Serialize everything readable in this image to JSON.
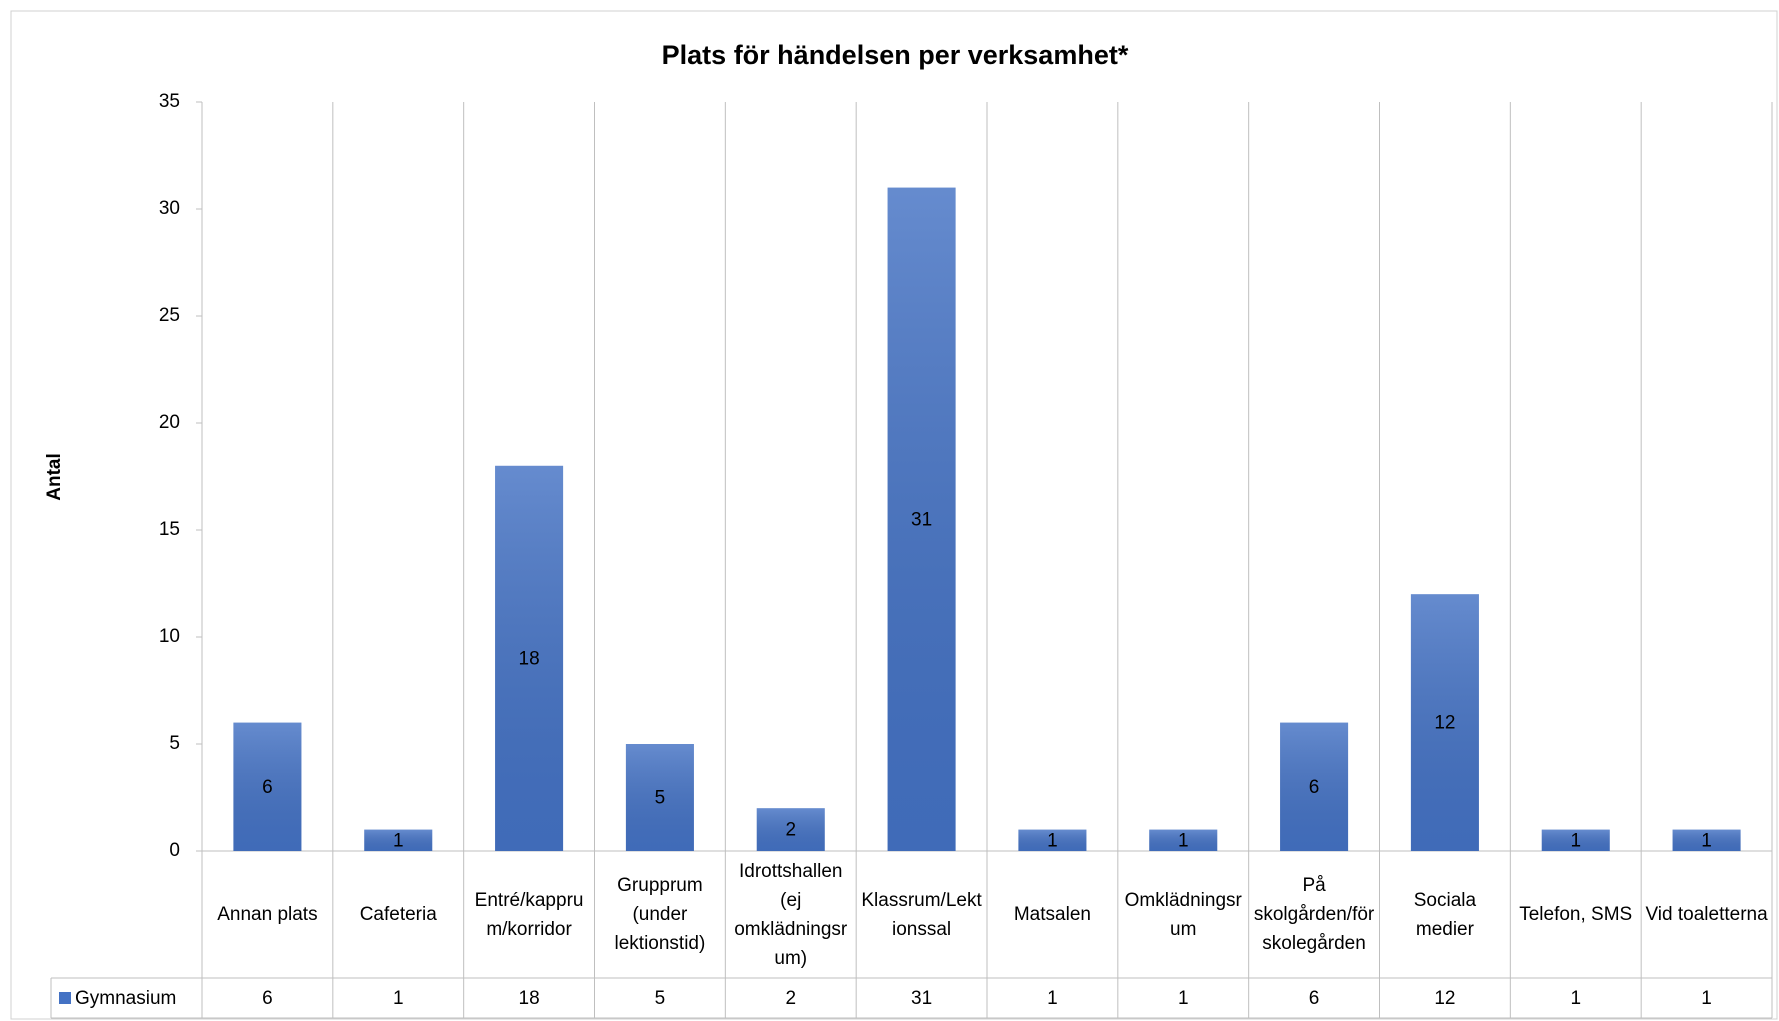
{
  "chart_data": {
    "type": "bar",
    "title": "Plats för händelsen per verksamhet*",
    "y_label": "Antal",
    "categories": [
      "Annan plats",
      "Cafeteria",
      "Entré/kapprum/korridor",
      "Grupprum (under lektionstid)",
      "Idrottshallen (ej omklädningsrum)",
      "Klassrum/Lektionssal",
      "Matsalen",
      "Omklädningsrum",
      "På skolgården/förskolegården",
      "Sociala medier",
      "Telefon, SMS",
      "Vid toaletterna"
    ],
    "series": [
      {
        "name": "Gymnasium",
        "color": "#4472c4",
        "values": [
          6,
          1,
          18,
          5,
          2,
          31,
          1,
          1,
          6,
          12,
          1,
          1
        ]
      }
    ],
    "ylim": [
      0,
      35
    ],
    "yticks": [
      0,
      5,
      10,
      15,
      20,
      25,
      30,
      35
    ],
    "grid": false,
    "legend": "bottom-left",
    "data_table": true
  }
}
